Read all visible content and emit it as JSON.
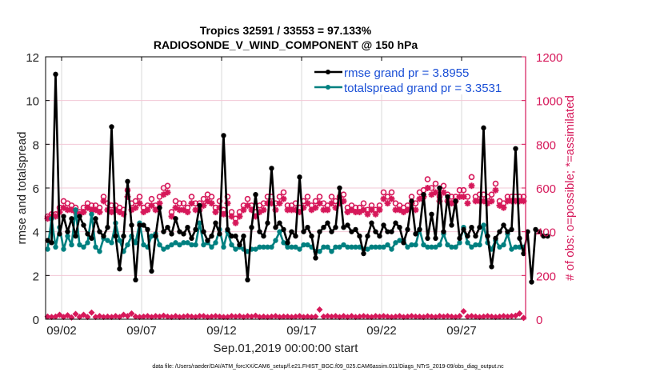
{
  "chart_data": {
    "type": "line",
    "title_line1": "Tropics 32591 / 33553 = 97.133%",
    "title_line2": "RADIOSONDE_V_WIND_COMPONENT @ 150 hPa",
    "xlabel": "Sep.01,2019 00:00:00 start",
    "ylabel_left": "rmse and totalspread",
    "ylabel_right": "# of obs: o=possible; *=assimilated",
    "footnote": "data file: /Users/raeder/DAI/ATM_forcXX/CAM6_setup/f.e21.FHIST_BGC.f09_025.CAM6assim.011/Diags_NTrS_2019-09/obs_diag_output.nc",
    "x_range_days": [
      0,
      30
    ],
    "x_ticks": [
      {
        "day": 1,
        "label": "09/02"
      },
      {
        "day": 6,
        "label": "09/07"
      },
      {
        "day": 11,
        "label": "09/12"
      },
      {
        "day": 16,
        "label": "09/17"
      },
      {
        "day": 21,
        "label": "09/22"
      },
      {
        "day": 26,
        "label": "09/27"
      }
    ],
    "ylim_left": [
      0,
      12
    ],
    "yticks_left": [
      0,
      2,
      4,
      6,
      8,
      10,
      12
    ],
    "ylim_right": [
      0,
      1200
    ],
    "yticks_right": [
      0,
      200,
      400,
      600,
      800,
      1000,
      1200
    ],
    "grid": "x and right-y gridlines",
    "legend_position": "top-right",
    "legend": [
      {
        "name": "rmse grand pr = 3.8955",
        "color": "#000000"
      },
      {
        "name": "totalspread grand pr = 3.3531",
        "color": "#008080"
      }
    ],
    "colors": {
      "rmse": "#000000",
      "spread": "#008080",
      "obs": "#d6185a",
      "legend_text": "#1a4fd6"
    },
    "step_hours": 6,
    "series": [
      {
        "name": "rmse",
        "values": [
          3.6,
          3.5,
          11.2,
          3.9,
          4.7,
          4.0,
          4.6,
          3.8,
          4.7,
          4.3,
          3.9,
          3.7,
          4.6,
          4.0,
          3.8,
          4.2,
          8.8,
          3.8,
          2.3,
          3.8,
          6.3,
          4.3,
          1.8,
          4.3,
          4.3,
          4.1,
          2.2,
          3.8,
          5.1,
          4.0,
          4.2,
          3.9,
          4.6,
          4.0,
          3.9,
          4.2,
          3.7,
          4.1,
          5.2,
          4.0,
          3.6,
          3.8,
          4.4,
          3.9,
          8.4,
          4.1,
          3.8,
          3.8,
          3.4,
          3.8,
          1.8,
          4.2,
          5.7,
          4.0,
          3.8,
          4.4,
          6.9,
          4.2,
          4.4,
          4.1,
          3.5,
          4.0,
          3.8,
          6.5,
          4.0,
          4.2,
          3.8,
          2.8,
          4.0,
          4.2,
          4.4,
          4.0,
          4.2,
          6.0,
          4.2,
          4.3,
          4.0,
          4.1,
          3.8,
          3.0,
          3.8,
          4.4,
          4.0,
          3.8,
          4.3,
          4.0,
          4.0,
          4.4,
          4.2,
          3.5,
          4.1,
          5.4,
          3.9,
          4.1,
          5.7,
          3.7,
          4.8,
          3.7,
          6.0,
          4.0,
          5.6,
          4.3,
          5.4,
          3.7,
          4.1,
          3.8,
          4.2,
          3.8,
          4.2,
          8.75,
          3.8,
          2.4,
          3.7,
          4.0,
          4.3,
          4.0,
          4.1,
          7.8,
          3.7,
          3.0,
          4.0,
          1.7,
          4.1,
          4.0,
          3.8,
          3.8
        ]
      },
      {
        "name": "totalspread",
        "values": [
          3.2,
          4.6,
          3.3,
          4.2,
          3.2,
          3.8,
          3.4,
          5.0,
          3.4,
          3.3,
          3.5,
          4.8,
          3.3,
          3.1,
          3.7,
          3.6,
          3.5,
          4.4,
          3.6,
          3.1,
          3.4,
          3.8,
          3.5,
          4.4,
          3.4,
          3.3,
          3.8,
          3.9,
          3.4,
          3.2,
          3.3,
          3.4,
          3.5,
          3.4,
          3.5,
          3.5,
          3.4,
          3.4,
          4.4,
          3.4,
          3.5,
          3.3,
          3.5,
          4.1,
          3.3,
          4.0,
          3.4,
          3.2,
          3.3,
          3.2,
          3.1,
          3.2,
          3.2,
          3.3,
          3.3,
          3.3,
          3.3,
          3.6,
          4.0,
          3.5,
          3.3,
          3.3,
          3.3,
          3.2,
          3.4,
          3.4,
          3.3,
          3.1,
          3.1,
          3.3,
          3.3,
          3.1,
          3.3,
          3.3,
          3.4,
          3.3,
          3.3,
          3.3,
          3.3,
          3.2,
          3.2,
          3.3,
          3.3,
          3.3,
          3.3,
          3.4,
          3.2,
          3.5,
          3.6,
          3.6,
          3.3,
          3.4,
          3.4,
          4.1,
          3.4,
          3.3,
          3.3,
          3.3,
          3.4,
          3.9,
          3.4,
          3.3,
          3.3,
          3.5,
          4.2,
          3.5,
          3.3,
          3.4,
          3.4,
          4.3,
          3.5,
          3.2,
          3.6,
          3.3,
          3.4,
          3.9,
          3.2,
          3.3,
          3.3,
          3.3
        ]
      },
      {
        "name": "obs_possible",
        "values": [
          470,
          480,
          480,
          510,
          540,
          530,
          520,
          510,
          490,
          510,
          530,
          520,
          520,
          510,
          560,
          530,
          520,
          520,
          510,
          500,
          590,
          530,
          540,
          560,
          510,
          520,
          550,
          520,
          560,
          600,
          610,
          490,
          540,
          530,
          530,
          510,
          560,
          530,
          530,
          550,
          570,
          560,
          510,
          540,
          500,
          560,
          490,
          460,
          490,
          520,
          550,
          520,
          490,
          520,
          530,
          560,
          560,
          530,
          560,
          580,
          520,
          520,
          530,
          510,
          540,
          560,
          520,
          540,
          560,
          530,
          520,
          560,
          540,
          560,
          570,
          510,
          520,
          510,
          510,
          530,
          500,
          520,
          500,
          520,
          580,
          560,
          580,
          530,
          520,
          510,
          520,
          560,
          530,
          580,
          590,
          640,
          600,
          620,
          560,
          610,
          570,
          560,
          560,
          590,
          590,
          560,
          650,
          560,
          570,
          570,
          560,
          570,
          620,
          540,
          530,
          560,
          560,
          560,
          560,
          560
        ]
      },
      {
        "name": "obs_assimilated",
        "values": [
          460,
          470,
          470,
          490,
          510,
          500,
          500,
          490,
          480,
          490,
          510,
          500,
          500,
          490,
          540,
          500,
          490,
          500,
          490,
          480,
          560,
          500,
          510,
          530,
          490,
          500,
          520,
          500,
          530,
          570,
          580,
          470,
          510,
          500,
          500,
          490,
          530,
          500,
          500,
          520,
          540,
          530,
          490,
          510,
          480,
          530,
          470,
          440,
          470,
          500,
          520,
          500,
          470,
          490,
          500,
          530,
          530,
          500,
          530,
          550,
          500,
          500,
          500,
          490,
          510,
          530,
          500,
          510,
          530,
          500,
          500,
          530,
          510,
          530,
          540,
          490,
          500,
          490,
          490,
          500,
          480,
          500,
          480,
          500,
          550,
          530,
          550,
          500,
          500,
          490,
          500,
          530,
          500,
          550,
          560,
          600,
          570,
          580,
          540,
          580,
          540,
          530,
          540,
          560,
          560,
          530,
          610,
          540,
          540,
          540,
          530,
          540,
          590,
          520,
          510,
          540,
          540,
          540,
          540,
          540
        ]
      },
      {
        "name": "obs_bottom_small",
        "values": [
          12,
          10,
          12,
          20,
          10,
          18,
          8,
          24,
          10,
          20,
          10,
          30,
          10,
          14,
          10,
          12,
          10,
          14,
          10,
          20,
          14,
          26,
          12,
          10,
          12,
          14,
          10,
          14,
          12,
          16,
          12,
          10,
          14,
          10,
          12,
          14,
          12,
          10,
          14,
          14,
          10,
          12,
          14,
          12,
          10,
          10,
          14,
          12,
          14,
          10,
          14,
          12,
          16,
          10,
          12,
          10,
          12,
          14,
          10,
          12,
          12,
          10,
          12,
          14,
          10,
          12,
          10,
          12,
          44,
          12,
          14,
          12,
          14,
          10,
          14,
          10,
          14,
          10,
          12,
          14,
          12,
          10,
          14,
          12,
          14,
          12,
          10,
          12,
          14,
          10,
          12,
          14,
          12,
          12,
          10,
          14,
          12,
          10,
          14,
          12,
          14,
          12,
          10,
          14,
          36,
          12,
          14,
          12,
          10,
          12,
          14,
          12,
          10,
          12,
          14,
          12,
          14,
          16,
          26,
          6
        ]
      }
    ]
  }
}
